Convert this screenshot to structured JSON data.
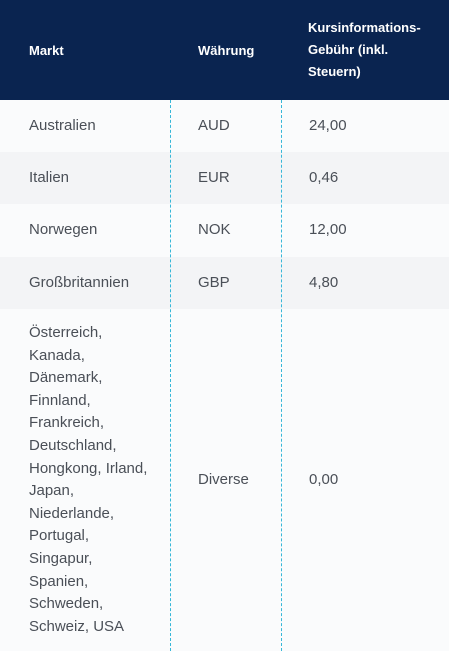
{
  "table": {
    "headers": {
      "market": "Markt",
      "currency": "Währung",
      "fee": "Kursinformations-Gebühr (inkl. Steuern)"
    },
    "rows": [
      {
        "market": "Australien",
        "currency": "AUD",
        "fee": "24,00"
      },
      {
        "market": "Italien",
        "currency": "EUR",
        "fee": "0,46"
      },
      {
        "market": "Norwegen",
        "currency": "NOK",
        "fee": "12,00"
      },
      {
        "market": "Großbritannien",
        "currency": "GBP",
        "fee": "4,80"
      },
      {
        "market": "Österreich, Kanada, Dänemark, Finnland, Frankreich, Deutschland, Hongkong, Irland, Japan, Niederlande, Portugal, Singapur, Spanien, Schweden, Schweiz, USA",
        "currency": "Diverse",
        "fee": "0,00"
      }
    ]
  },
  "colors": {
    "header_bg": "#0a2450",
    "divider": "#36b7d8",
    "row_alt_bg": "#f3f4f6"
  }
}
